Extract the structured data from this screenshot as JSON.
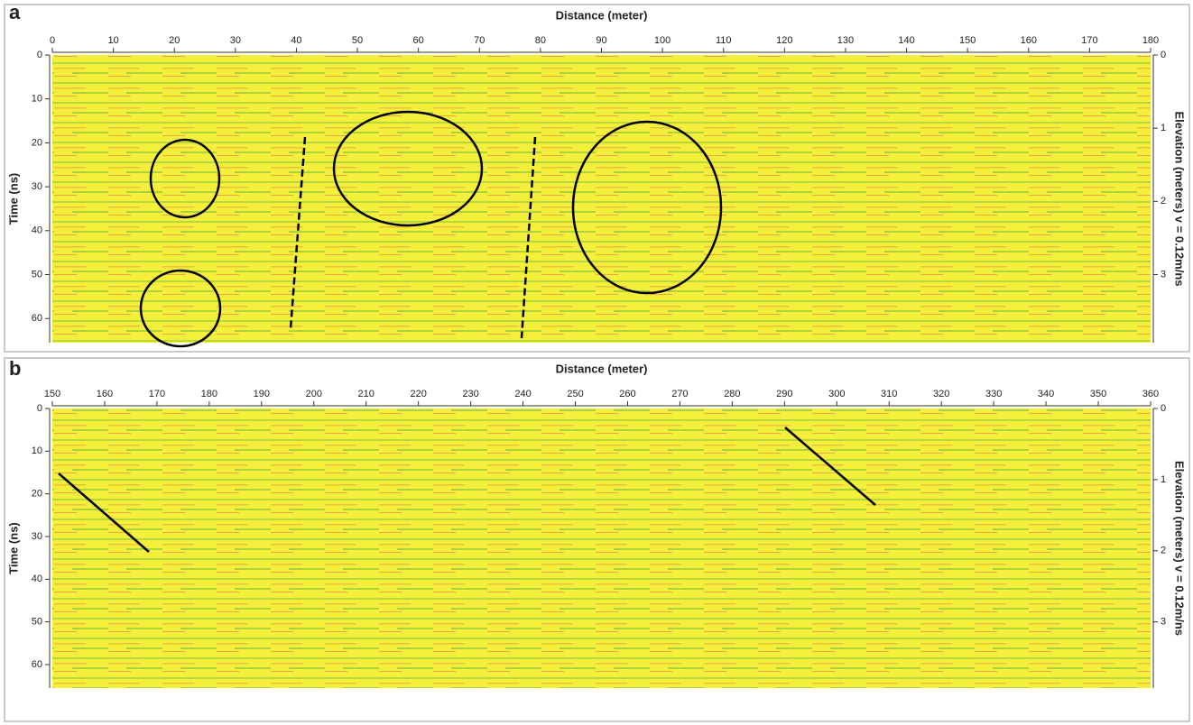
{
  "panels": [
    {
      "label": "a",
      "x_title": "Distance (meter)",
      "y_title": "Time (ns)",
      "y2_title": "Elevation (meters) v = 0.12m/ns",
      "xlim": [
        0,
        180
      ],
      "xticks": [
        0,
        10,
        20,
        30,
        40,
        50,
        60,
        70,
        80,
        90,
        100,
        110,
        120,
        130,
        140,
        150,
        160,
        170,
        180
      ],
      "ylim": [
        0,
        65.5
      ],
      "yticks": [
        0,
        10,
        20,
        30,
        40,
        50,
        60
      ],
      "y2lim": [
        0,
        3.93
      ],
      "y2ticks": [
        0,
        1,
        2,
        3
      ]
    },
    {
      "label": "b",
      "x_title": "Distance (meter)",
      "y_title": "Time (ns)",
      "y2_title": "Elevation (meters) v = 0.12m/ns",
      "xlim": [
        150,
        360
      ],
      "xticks": [
        150,
        160,
        170,
        180,
        190,
        200,
        210,
        220,
        230,
        240,
        250,
        260,
        270,
        280,
        290,
        300,
        310,
        320,
        330,
        340,
        350,
        360
      ],
      "ylim": [
        0,
        65.5
      ],
      "yticks": [
        0,
        10,
        20,
        30,
        40,
        50,
        60
      ],
      "y2lim": [
        0,
        3.93
      ],
      "y2ticks": [
        0,
        1,
        2,
        3
      ]
    }
  ]
}
